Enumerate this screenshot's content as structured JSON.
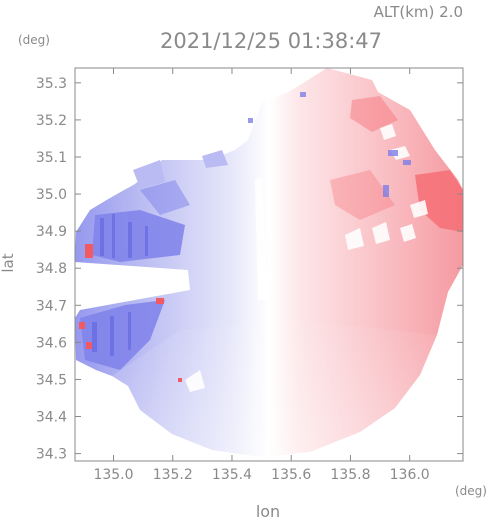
{
  "header": {
    "altitude_label": "ALT(km) 2.0",
    "timestamp": "2021/12/25 01:38:47",
    "ylabel_unit": "(deg)",
    "xlabel_unit": "(deg)"
  },
  "chart_data": {
    "type": "heatmap",
    "xlabel": "lon",
    "ylabel": "lat",
    "xlim": [
      134.87,
      136.18
    ],
    "ylim": [
      34.28,
      35.34
    ],
    "xticks": [
      135.0,
      135.2,
      135.4,
      135.6,
      135.8,
      136.0
    ],
    "xtick_labels": [
      "135.0",
      "135.2",
      "135.4",
      "135.6",
      "135.8",
      "136.0"
    ],
    "yticks": [
      34.3,
      34.4,
      34.5,
      34.6,
      34.7,
      34.8,
      34.9,
      35.0,
      35.1,
      35.2,
      35.3
    ],
    "ytick_labels": [
      "34.3",
      "34.4",
      "34.5",
      "34.6",
      "34.7",
      "34.8",
      "34.9",
      "35.0",
      "35.1",
      "35.2",
      "35.3"
    ],
    "colors": {
      "approaching": "#7d7fe9",
      "approaching_light": "#dcdcf6",
      "neutral": "#ffffff",
      "receding_light": "#fbdede",
      "receding": "#f66f76"
    },
    "grid": false,
    "legend": "none"
  }
}
